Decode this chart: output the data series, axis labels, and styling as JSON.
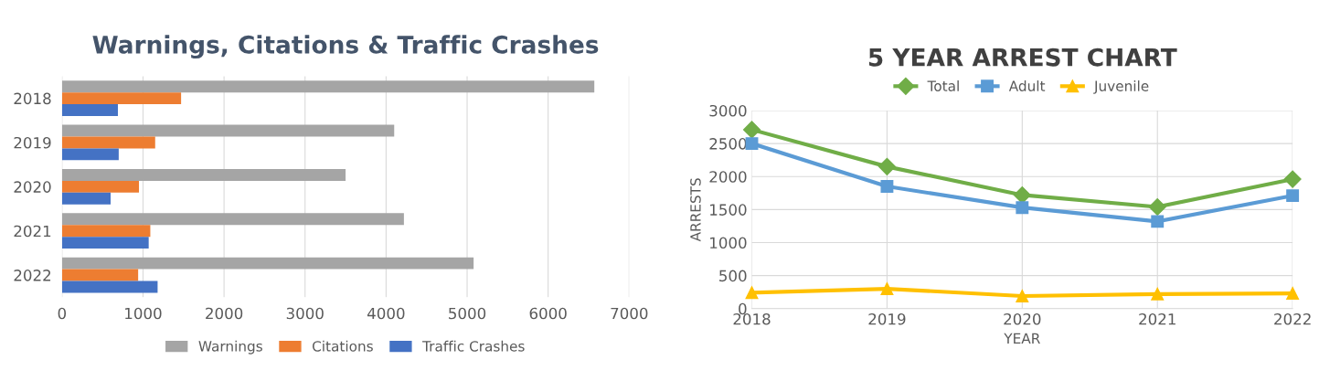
{
  "chart_data": [
    {
      "type": "bar",
      "orientation": "horizontal",
      "title": "Warnings, Citations & Traffic Crashes",
      "categories": [
        "2018",
        "2019",
        "2020",
        "2021",
        "2022"
      ],
      "series": [
        {
          "name": "Warnings",
          "color": "#a5a5a5",
          "values": [
            6570,
            4100,
            3500,
            4220,
            5080
          ]
        },
        {
          "name": "Citations",
          "color": "#ed7d31",
          "values": [
            1470,
            1150,
            950,
            1090,
            940
          ]
        },
        {
          "name": "Traffic Crashes",
          "color": "#4472c4",
          "values": [
            690,
            700,
            600,
            1070,
            1180
          ]
        }
      ],
      "xlim": [
        0,
        7000
      ],
      "xticks": [
        0,
        1000,
        2000,
        3000,
        4000,
        5000,
        6000,
        7000
      ],
      "grid": "x",
      "legend": "bottom"
    },
    {
      "type": "line",
      "title": "5 YEAR ARREST CHART",
      "xlabel": "YEAR",
      "ylabel": "ARRESTS",
      "categories": [
        "2018",
        "2019",
        "2020",
        "2021",
        "2022"
      ],
      "series": [
        {
          "name": "Total",
          "color": "#70ad47",
          "marker": "diamond",
          "values": [
            2710,
            2150,
            1720,
            1540,
            1960
          ]
        },
        {
          "name": "Adult",
          "color": "#5b9bd5",
          "marker": "square",
          "values": [
            2500,
            1850,
            1530,
            1320,
            1710
          ]
        },
        {
          "name": "Juvenile",
          "color": "#ffc000",
          "marker": "triangle",
          "values": [
            240,
            300,
            190,
            220,
            230
          ]
        }
      ],
      "ylim": [
        0,
        3000
      ],
      "yticks": [
        0,
        500,
        1000,
        1500,
        2000,
        2500,
        3000
      ],
      "grid": true,
      "legend": "top",
      "line_style": "solid"
    }
  ]
}
